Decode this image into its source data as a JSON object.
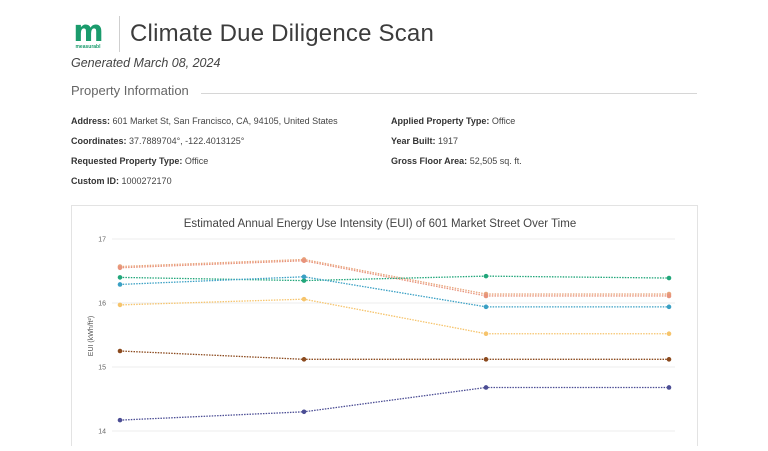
{
  "logo": {
    "letter": "m",
    "wordmark": "measurabl"
  },
  "header": {
    "title": "Climate Due Diligence Scan"
  },
  "generated": "Generated March 08, 2024",
  "property_info": {
    "heading": "Property Information",
    "address_label": "Address:",
    "address": "601 Market St, San Francisco, CA, 94105, United States",
    "coordinates_label": "Coordinates:",
    "coordinates": "37.7889704°,  -122.4013125°",
    "requested_type_label": "Requested Property Type:",
    "requested_type": "Office",
    "custom_id_label": "Custom ID:",
    "custom_id": "1000272170",
    "applied_type_label": "Applied Property Type:",
    "applied_type": "Office",
    "year_built_label": "Year Built:",
    "year_built": "1917",
    "gfa_label": "Gross Floor Area:",
    "gfa": "52,505 sq. ft."
  },
  "chart_data": {
    "type": "line",
    "title": "Estimated Annual Energy Use Intensity (EUI) of 601 Market Street Over Time",
    "ylabel": "EUI (kWh/ft²)",
    "xlabel": "",
    "ylim": [
      14,
      17
    ],
    "yticks": [
      14,
      15,
      16,
      17
    ],
    "grid": true,
    "x": [
      0,
      1,
      2,
      3
    ],
    "series": [
      {
        "values": [
          16.57,
          16.68,
          16.14,
          16.14
        ],
        "color": "#e8a57c"
      },
      {
        "values": [
          16.55,
          16.66,
          16.11,
          16.11
        ],
        "color": "#e8937c"
      },
      {
        "values": [
          16.4,
          16.35,
          16.42,
          16.39
        ],
        "color": "#21a67a"
      },
      {
        "values": [
          16.29,
          16.41,
          15.94,
          15.94
        ],
        "color": "#3aa0c4"
      },
      {
        "values": [
          15.97,
          16.06,
          15.52,
          15.52
        ],
        "color": "#f6c46c"
      },
      {
        "values": [
          15.25,
          15.12,
          15.12,
          15.12
        ],
        "color": "#8b4a1e"
      },
      {
        "values": [
          14.17,
          14.3,
          14.68,
          14.68
        ],
        "color": "#4b4d94"
      }
    ]
  }
}
